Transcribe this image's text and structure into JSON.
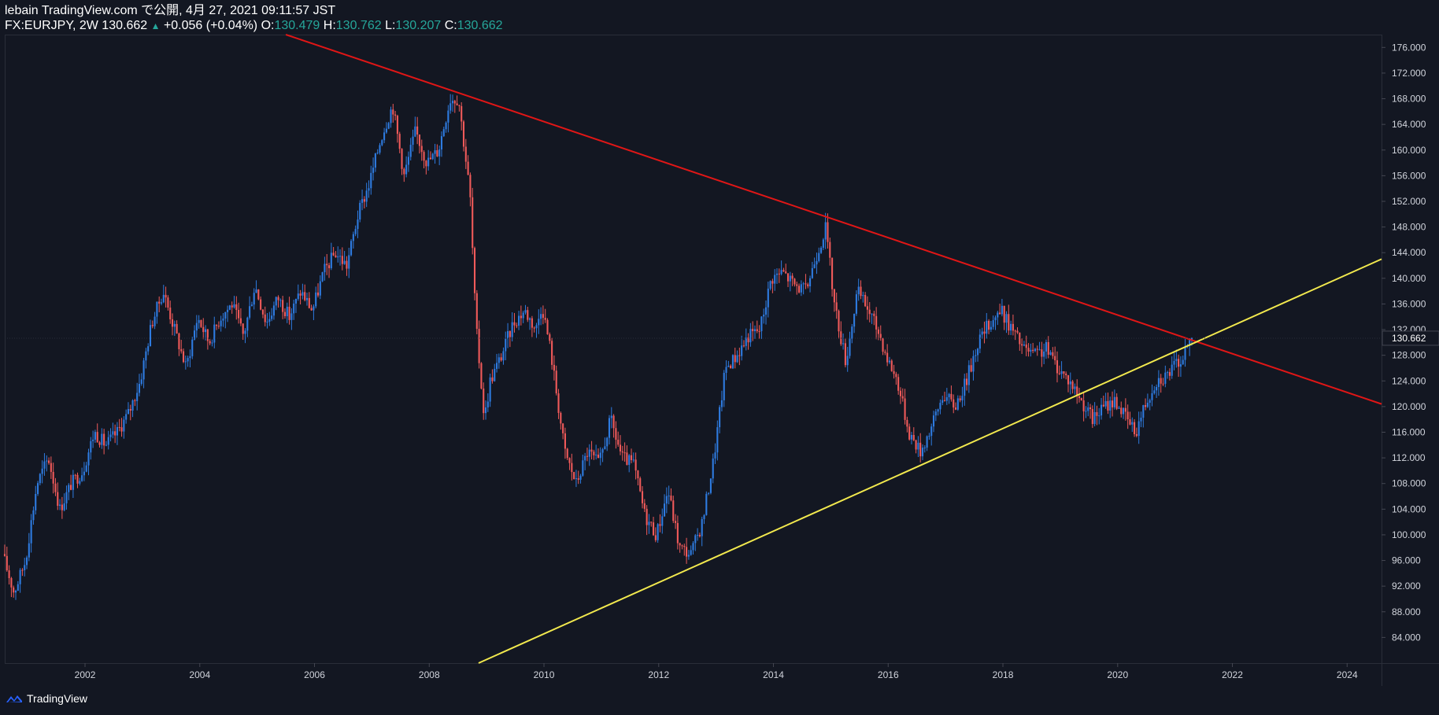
{
  "header": {
    "publish_line": "lebain TradingView.com で公開, 4月 27, 2021 09:11:57 JST",
    "symbol": "FX:EURJPY, 2W",
    "last": "130.662",
    "change": "+0.056 (+0.04%)",
    "o_label": "O:",
    "o_value": "130.479",
    "h_label": "H:",
    "h_value": "130.762",
    "l_label": "L:",
    "l_value": "130.207",
    "c_label": "C:",
    "c_value": "130.662"
  },
  "footer": {
    "brand": "TradingView"
  },
  "colors": {
    "background": "#131722",
    "up": "#2e7be0",
    "down": "#f05a5a",
    "resistance": "#e01616",
    "support": "#f2e94e",
    "axis_text": "#d1d4dc",
    "header_value": "#26a69a"
  },
  "chart_data": {
    "type": "candlestick",
    "symbol": "FX:EURJPY",
    "interval": "2W",
    "ylim": [
      80,
      178
    ],
    "xlim": [
      2000.6,
      2024.6
    ],
    "y_ticks": [
      "84.000",
      "88.000",
      "92.000",
      "96.000",
      "100.000",
      "104.000",
      "108.000",
      "112.000",
      "116.000",
      "120.000",
      "124.000",
      "128.000",
      "132.000",
      "136.000",
      "140.000",
      "144.000",
      "148.000",
      "152.000",
      "156.000",
      "160.000",
      "164.000",
      "168.000",
      "172.000",
      "176.000"
    ],
    "x_ticks": [
      "2002",
      "2004",
      "2006",
      "2008",
      "2010",
      "2012",
      "2014",
      "2016",
      "2018",
      "2020",
      "2022",
      "2024"
    ],
    "last_price_label": "130.662",
    "price_path": [
      [
        2000.6,
        97
      ],
      [
        2000.8,
        91
      ],
      [
        2001.0,
        96
      ],
      [
        2001.2,
        108
      ],
      [
        2001.4,
        112
      ],
      [
        2001.6,
        104
      ],
      [
        2001.8,
        108
      ],
      [
        2002.0,
        110
      ],
      [
        2002.2,
        116
      ],
      [
        2002.4,
        114
      ],
      [
        2002.6,
        116
      ],
      [
        2002.8,
        119
      ],
      [
        2003.0,
        124
      ],
      [
        2003.2,
        133
      ],
      [
        2003.4,
        138
      ],
      [
        2003.6,
        132
      ],
      [
        2003.8,
        126
      ],
      [
        2004.0,
        134
      ],
      [
        2004.2,
        130
      ],
      [
        2004.4,
        134
      ],
      [
        2004.6,
        136
      ],
      [
        2004.8,
        131
      ],
      [
        2005.0,
        139
      ],
      [
        2005.2,
        133
      ],
      [
        2005.4,
        137
      ],
      [
        2005.6,
        134
      ],
      [
        2005.8,
        138
      ],
      [
        2006.0,
        135
      ],
      [
        2006.2,
        141
      ],
      [
        2006.4,
        144
      ],
      [
        2006.6,
        142
      ],
      [
        2006.8,
        150
      ],
      [
        2007.0,
        155
      ],
      [
        2007.2,
        162
      ],
      [
        2007.4,
        167
      ],
      [
        2007.6,
        156
      ],
      [
        2007.8,
        163
      ],
      [
        2008.0,
        158
      ],
      [
        2008.2,
        160
      ],
      [
        2008.4,
        168
      ],
      [
        2008.55,
        168
      ],
      [
        2008.75,
        153
      ],
      [
        2008.85,
        133
      ],
      [
        2009.0,
        118
      ],
      [
        2009.1,
        124
      ],
      [
        2009.3,
        128
      ],
      [
        2009.5,
        133
      ],
      [
        2009.7,
        135
      ],
      [
        2009.9,
        132
      ],
      [
        2010.0,
        136
      ],
      [
        2010.15,
        129
      ],
      [
        2010.4,
        113
      ],
      [
        2010.6,
        108
      ],
      [
        2010.8,
        113
      ],
      [
        2011.0,
        111
      ],
      [
        2011.2,
        118
      ],
      [
        2011.4,
        112
      ],
      [
        2011.6,
        111
      ],
      [
        2011.8,
        103
      ],
      [
        2012.0,
        100
      ],
      [
        2012.2,
        107
      ],
      [
        2012.4,
        98
      ],
      [
        2012.6,
        97
      ],
      [
        2012.8,
        102
      ],
      [
        2013.0,
        112
      ],
      [
        2013.2,
        126
      ],
      [
        2013.4,
        128
      ],
      [
        2013.6,
        131
      ],
      [
        2013.8,
        132
      ],
      [
        2014.0,
        140
      ],
      [
        2014.2,
        141
      ],
      [
        2014.4,
        139
      ],
      [
        2014.6,
        138
      ],
      [
        2014.8,
        144
      ],
      [
        2014.95,
        148
      ],
      [
        2015.1,
        136
      ],
      [
        2015.3,
        127
      ],
      [
        2015.5,
        138
      ],
      [
        2015.7,
        135
      ],
      [
        2015.9,
        131
      ],
      [
        2016.0,
        128
      ],
      [
        2016.2,
        124
      ],
      [
        2016.4,
        116
      ],
      [
        2016.6,
        113
      ],
      [
        2016.8,
        117
      ],
      [
        2017.0,
        122
      ],
      [
        2017.2,
        120
      ],
      [
        2017.4,
        124
      ],
      [
        2017.6,
        130
      ],
      [
        2017.8,
        133
      ],
      [
        2018.0,
        135
      ],
      [
        2018.2,
        132
      ],
      [
        2018.4,
        129
      ],
      [
        2018.6,
        128
      ],
      [
        2018.8,
        129
      ],
      [
        2019.0,
        126
      ],
      [
        2019.2,
        124
      ],
      [
        2019.4,
        121
      ],
      [
        2019.6,
        118
      ],
      [
        2019.8,
        120
      ],
      [
        2020.0,
        121
      ],
      [
        2020.2,
        118
      ],
      [
        2020.35,
        116
      ],
      [
        2020.5,
        120
      ],
      [
        2020.7,
        124
      ],
      [
        2020.9,
        125
      ],
      [
        2021.0,
        126
      ],
      [
        2021.2,
        128
      ],
      [
        2021.32,
        130.66
      ]
    ],
    "trendlines": [
      {
        "name": "resistance",
        "color": "#e01616",
        "p1": [
          2005.5,
          178
        ],
        "p2": [
          2024.6,
          120.4
        ]
      },
      {
        "name": "support",
        "color": "#f2e94e",
        "p1": [
          2008.86,
          80
        ],
        "p2": [
          2024.6,
          143
        ]
      }
    ]
  }
}
